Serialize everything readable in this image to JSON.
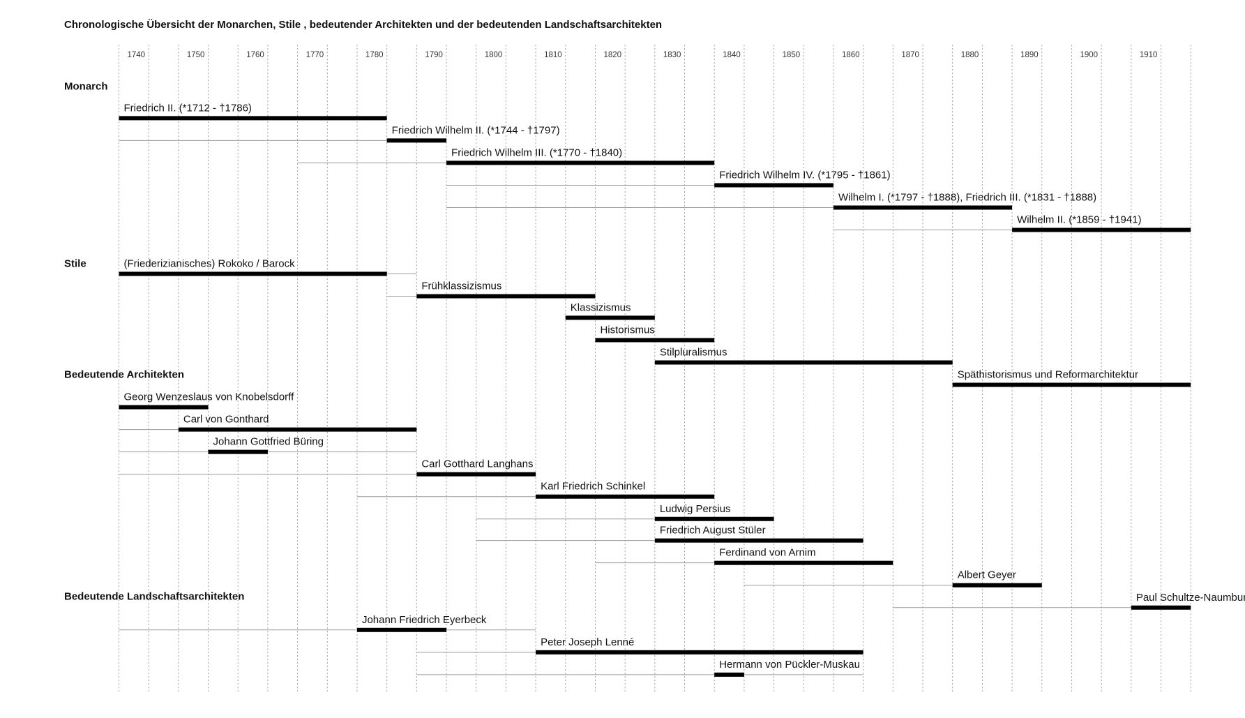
{
  "chart_data": {
    "type": "timeline",
    "title": "Chronologische Übersicht der Monarchen, Stile , bedeutender Architekten und der bedeutenden Landschaftsarchitekten",
    "xlim": [
      1740,
      1920
    ],
    "xticks": [
      1740,
      1750,
      1760,
      1770,
      1780,
      1790,
      1800,
      1810,
      1820,
      1830,
      1840,
      1850,
      1860,
      1870,
      1880,
      1890,
      1900,
      1910
    ],
    "grid": true,
    "minor_grid": true,
    "bar_color": "#000000",
    "line_color": "#9a9a9a",
    "groups": [
      {
        "name": "Monarch",
        "rows": [
          {
            "label": "Friedrich II. (*1712 - †1786)",
            "bar": [
              1740,
              1785
            ]
          },
          {
            "label": "Friedrich Wilhelm II. (*1744 - †1797)",
            "bar": [
              1785,
              1795
            ],
            "lines": [
              [
                1740,
                1785
              ]
            ]
          },
          {
            "label": "Friedrich Wilhelm III. (*1770 - †1840)",
            "bar": [
              1795,
              1840
            ],
            "lines": [
              [
                1770,
                1795
              ]
            ]
          },
          {
            "label": "Friedrich Wilhelm IV. (*1795 - †1861)",
            "bar": [
              1840,
              1860
            ],
            "lines": [
              [
                1795,
                1840
              ]
            ]
          },
          {
            "label": "Wilhelm I. (*1797 - †1888), Friedrich III. (*1831 - †1888)",
            "bar": [
              1860,
              1890
            ],
            "lines": [
              [
                1795,
                1860
              ]
            ]
          },
          {
            "label": "Wilhelm II. (*1859 - †1941)",
            "bar": [
              1890,
              1920
            ],
            "lines": [
              [
                1860,
                1890
              ]
            ]
          }
        ]
      },
      {
        "name": "Stile",
        "rows": [
          {
            "label": "(Friederizianisches) Rokoko / Barock",
            "bar": [
              1740,
              1785
            ],
            "lines": [
              [
                1785,
                1790
              ]
            ]
          },
          {
            "label": "Frühklassizismus",
            "bar": [
              1790,
              1820
            ],
            "lines": [
              [
                1785,
                1790
              ]
            ]
          },
          {
            "label": "Klassizismus",
            "bar": [
              1815,
              1830
            ]
          },
          {
            "label": "Historismus",
            "bar": [
              1820,
              1840
            ]
          },
          {
            "label": "Stilpluralismus",
            "bar": [
              1830,
              1880
            ]
          },
          {
            "label": "Späthistorismus und Reformarchitektur",
            "bar": [
              1880,
              1920
            ]
          }
        ]
      },
      {
        "name": "Bedeutende Architekten",
        "rows": [
          {
            "label": "Georg Wenzeslaus von Knobelsdorff",
            "bar": [
              1740,
              1755
            ]
          },
          {
            "label": "Carl von Gonthard",
            "bar": [
              1750,
              1790
            ],
            "lines": [
              [
                1740,
                1750
              ]
            ]
          },
          {
            "label": "Johann Gottfried Büring",
            "bar": [
              1755,
              1765
            ],
            "lines": [
              [
                1740,
                1755
              ],
              [
                1765,
                1790
              ]
            ]
          },
          {
            "label": "Carl Gotthard Langhans",
            "bar": [
              1790,
              1810
            ],
            "lines": [
              [
                1740,
                1790
              ]
            ]
          },
          {
            "label": "Karl Friedrich Schinkel",
            "bar": [
              1810,
              1840
            ],
            "lines": [
              [
                1780,
                1810
              ]
            ]
          },
          {
            "label": "Ludwig Persius",
            "bar": [
              1830,
              1850
            ],
            "lines": [
              [
                1800,
                1830
              ]
            ]
          },
          {
            "label": "Friedrich August Stüler",
            "bar": [
              1830,
              1865
            ],
            "lines": [
              [
                1800,
                1830
              ]
            ]
          },
          {
            "label": "Ferdinand von Arnim",
            "bar": [
              1840,
              1870
            ],
            "lines": [
              [
                1820,
                1840
              ]
            ]
          },
          {
            "label": "Albert Geyer",
            "bar": [
              1880,
              1895
            ],
            "lines": [
              [
                1845,
                1880
              ]
            ]
          },
          {
            "label": "Paul Schultze-Naumburg",
            "bar": [
              1910,
              1920
            ],
            "lines": [
              [
                1870,
                1910
              ]
            ]
          }
        ]
      },
      {
        "name": "Bedeutende Landschaftsarchitekten",
        "rows": [
          {
            "label": "Johann Friedrich Eyerbeck",
            "bar": [
              1780,
              1795
            ],
            "lines": [
              [
                1740,
                1780
              ],
              [
                1795,
                1810
              ]
            ]
          },
          {
            "label": "Peter Joseph Lenné",
            "bar": [
              1810,
              1865
            ],
            "lines": [
              [
                1790,
                1810
              ]
            ]
          },
          {
            "label": "Hermann von Pückler-Muskau",
            "bar": [
              1840,
              1845
            ],
            "lines": [
              [
                1790,
                1840
              ],
              [
                1845,
                1865
              ]
            ]
          }
        ]
      }
    ]
  }
}
